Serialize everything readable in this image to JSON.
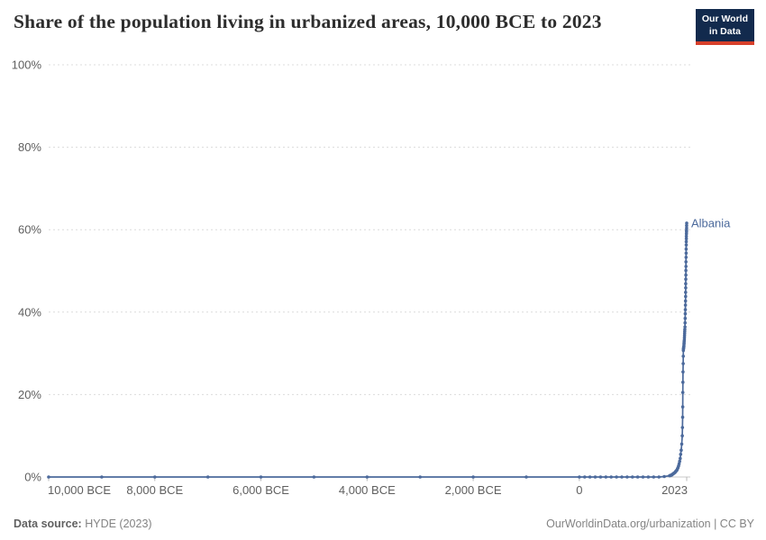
{
  "header": {
    "title": "Share of the population living in urbanized areas, 10,000 BCE to 2023",
    "logo_line1": "Our World",
    "logo_line2": "in Data"
  },
  "footer": {
    "source_label": "Data source:",
    "source_value": "HYDE (2023)",
    "credit": "OurWorldinData.org/urbanization | CC BY"
  },
  "colors": {
    "line": "#4C6A9C",
    "grid": "#dcdcdc",
    "axis_text": "#5f5f5f",
    "logo_bg": "#122a4d",
    "logo_red": "#d7402b"
  },
  "chart_data": {
    "type": "line",
    "title": "Share of the population living in urbanized areas, 10,000 BCE to 2023",
    "xlabel": "",
    "ylabel": "",
    "grid": true,
    "legend": "inline-entity-label",
    "x_range": [
      -10000,
      2023
    ],
    "y_range": [
      0,
      100
    ],
    "x_ticks": [
      {
        "value": -10000,
        "label": "10,000 BCE"
      },
      {
        "value": -8000,
        "label": "8,000 BCE"
      },
      {
        "value": -6000,
        "label": "6,000 BCE"
      },
      {
        "value": -4000,
        "label": "4,000 BCE"
      },
      {
        "value": -2000,
        "label": "2,000 BCE"
      },
      {
        "value": 0,
        "label": "0"
      },
      {
        "value": 2023,
        "label": "2023"
      }
    ],
    "y_ticks": [
      {
        "value": 0,
        "label": "0%"
      },
      {
        "value": 20,
        "label": "20%"
      },
      {
        "value": 40,
        "label": "40%"
      },
      {
        "value": 60,
        "label": "60%"
      },
      {
        "value": 80,
        "label": "80%"
      },
      {
        "value": 100,
        "label": "100%"
      }
    ],
    "series": [
      {
        "name": "Albania",
        "color": "#4C6A9C",
        "points": [
          [
            -10000,
            0
          ],
          [
            -9000,
            0
          ],
          [
            -8000,
            0
          ],
          [
            -7000,
            0
          ],
          [
            -6000,
            0
          ],
          [
            -5000,
            0
          ],
          [
            -4000,
            0
          ],
          [
            -3000,
            0
          ],
          [
            -2000,
            0
          ],
          [
            -1000,
            0
          ],
          [
            0,
            0
          ],
          [
            100,
            0
          ],
          [
            200,
            0
          ],
          [
            300,
            0
          ],
          [
            400,
            0
          ],
          [
            500,
            0
          ],
          [
            600,
            0
          ],
          [
            700,
            0
          ],
          [
            800,
            0
          ],
          [
            900,
            0
          ],
          [
            1000,
            0
          ],
          [
            1100,
            0
          ],
          [
            1200,
            0
          ],
          [
            1300,
            0
          ],
          [
            1400,
            0
          ],
          [
            1500,
            0
          ],
          [
            1600,
            0.1
          ],
          [
            1700,
            0.3
          ],
          [
            1710,
            0.35
          ],
          [
            1720,
            0.4
          ],
          [
            1730,
            0.45
          ],
          [
            1740,
            0.5
          ],
          [
            1750,
            0.6
          ],
          [
            1760,
            0.7
          ],
          [
            1770,
            0.8
          ],
          [
            1780,
            0.9
          ],
          [
            1790,
            1
          ],
          [
            1800,
            1.1
          ],
          [
            1810,
            1.25
          ],
          [
            1820,
            1.4
          ],
          [
            1830,
            1.55
          ],
          [
            1840,
            1.7
          ],
          [
            1850,
            2
          ],
          [
            1860,
            2.3
          ],
          [
            1870,
            2.7
          ],
          [
            1880,
            3.2
          ],
          [
            1890,
            3.8
          ],
          [
            1900,
            4.5
          ],
          [
            1910,
            5.5
          ],
          [
            1920,
            6.5
          ],
          [
            1930,
            8
          ],
          [
            1940,
            10
          ],
          [
            1943,
            12
          ],
          [
            1946,
            14.5
          ],
          [
            1948,
            17
          ],
          [
            1950,
            20.5
          ],
          [
            1952,
            23
          ],
          [
            1954,
            25.5
          ],
          [
            1956,
            27.5
          ],
          [
            1958,
            29.3
          ],
          [
            1960,
            30.7
          ],
          [
            1962,
            31
          ],
          [
            1964,
            31.2
          ],
          [
            1966,
            31.4
          ],
          [
            1968,
            31.6
          ],
          [
            1970,
            31.8
          ],
          [
            1972,
            32.2
          ],
          [
            1974,
            32.5
          ],
          [
            1976,
            32.9
          ],
          [
            1978,
            33.3
          ],
          [
            1980,
            33.8
          ],
          [
            1982,
            34.3
          ],
          [
            1984,
            34.8
          ],
          [
            1986,
            35.3
          ],
          [
            1988,
            35.8
          ],
          [
            1990,
            36.4
          ],
          [
            1992,
            37.4
          ],
          [
            1994,
            38.5
          ],
          [
            1996,
            39.6
          ],
          [
            1998,
            40.6
          ],
          [
            2000,
            41.7
          ],
          [
            2001,
            42.7
          ],
          [
            2002,
            43.8
          ],
          [
            2003,
            44.8
          ],
          [
            2004,
            45.9
          ],
          [
            2005,
            46.9
          ],
          [
            2006,
            48
          ],
          [
            2007,
            49
          ],
          [
            2008,
            50.1
          ],
          [
            2009,
            51.1
          ],
          [
            2010,
            52.2
          ],
          [
            2011,
            53.3
          ],
          [
            2012,
            54.3
          ],
          [
            2013,
            55.3
          ],
          [
            2014,
            56.3
          ],
          [
            2015,
            57.1
          ],
          [
            2016,
            57.8
          ],
          [
            2017,
            58.4
          ],
          [
            2018,
            59
          ],
          [
            2019,
            59.5
          ],
          [
            2020,
            59.9
          ],
          [
            2021,
            60.4
          ],
          [
            2022,
            61
          ],
          [
            2023,
            61.6
          ]
        ]
      }
    ]
  }
}
